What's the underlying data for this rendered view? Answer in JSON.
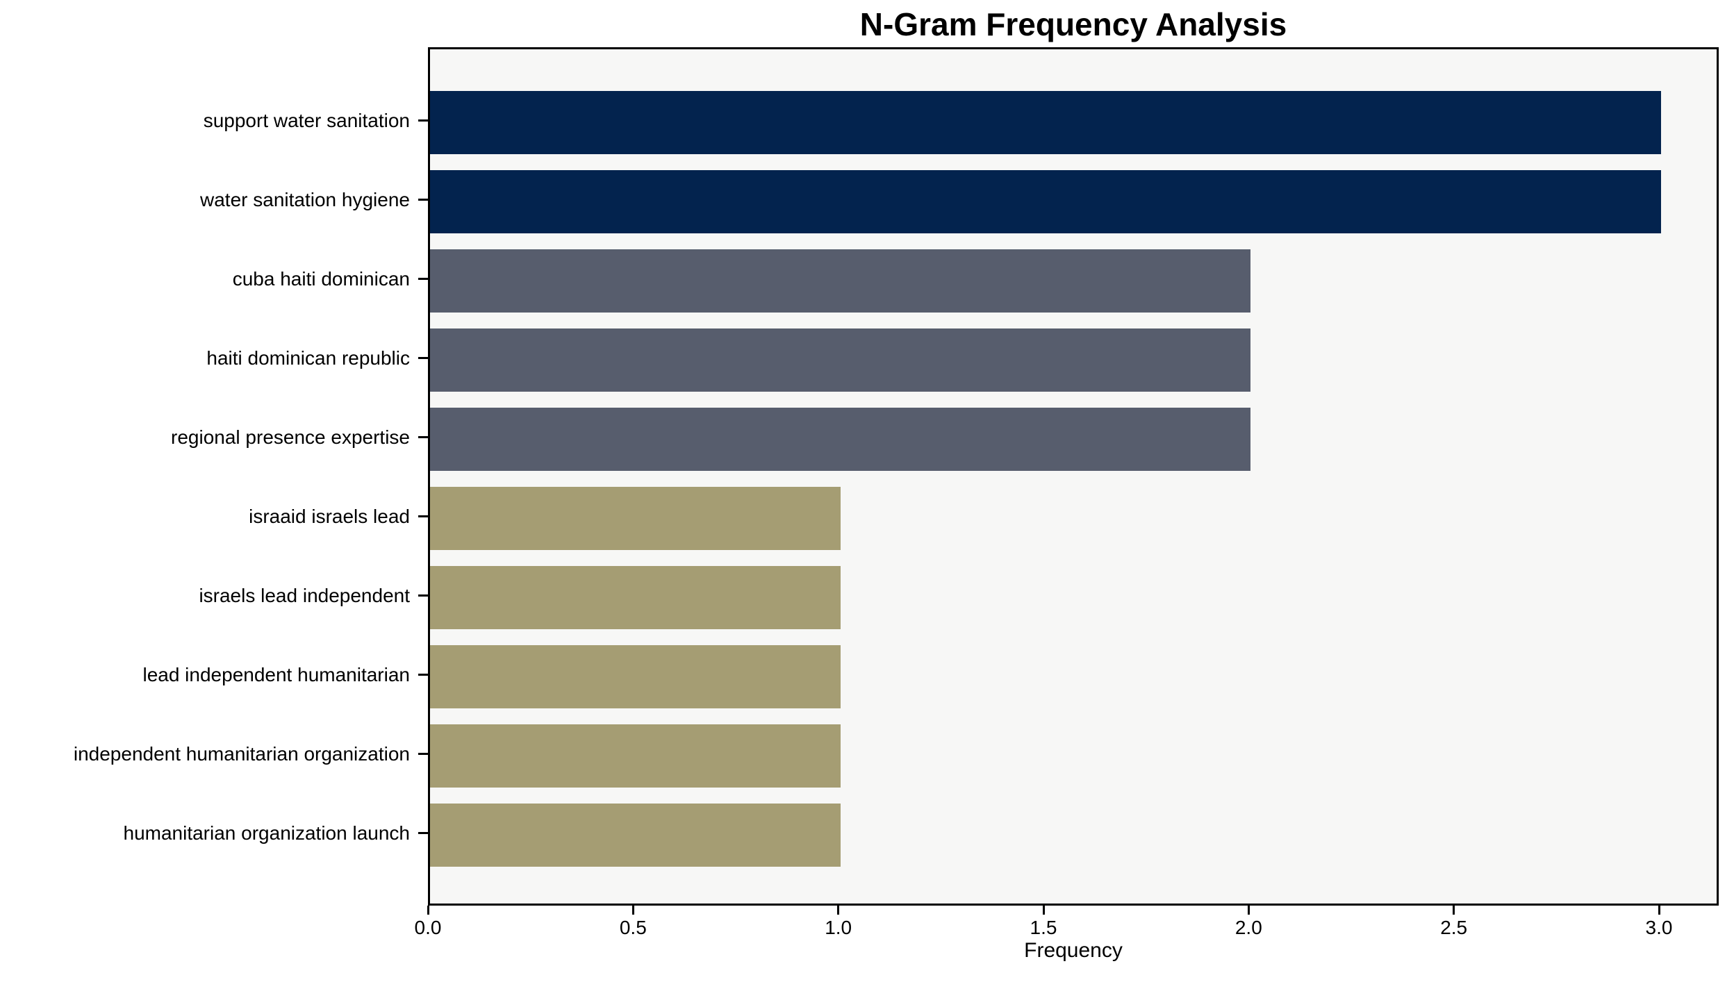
{
  "chart_data": {
    "type": "bar",
    "orientation": "horizontal",
    "title": "N-Gram Frequency Analysis",
    "xlabel": "Frequency",
    "ylabel": "",
    "categories": [
      "support water sanitation",
      "water sanitation hygiene",
      "cuba haiti dominican",
      "haiti dominican republic",
      "regional presence expertise",
      "israaid israels lead",
      "israels lead independent",
      "lead independent humanitarian",
      "independent humanitarian organization",
      "humanitarian organization launch"
    ],
    "values": [
      3,
      3,
      2,
      2,
      2,
      1,
      1,
      1,
      1,
      1
    ],
    "bar_colors": [
      "#03234e",
      "#03234e",
      "#575d6d",
      "#575d6d",
      "#575d6d",
      "#a59d73",
      "#a59d73",
      "#a59d73",
      "#a59d73",
      "#a59d73"
    ],
    "xlim": [
      0.0,
      3.15
    ],
    "xticks": [
      0.0,
      0.5,
      1.0,
      1.5,
      2.0,
      2.5,
      3.0
    ],
    "xtick_labels": [
      "0.0",
      "0.5",
      "1.0",
      "1.5",
      "2.0",
      "2.5",
      "3.0"
    ],
    "grid": false,
    "legend": null,
    "plot_background": "#f7f7f6",
    "figure_background": "#ffffff",
    "spine_color": "#000000",
    "text_color": "#000000"
  }
}
